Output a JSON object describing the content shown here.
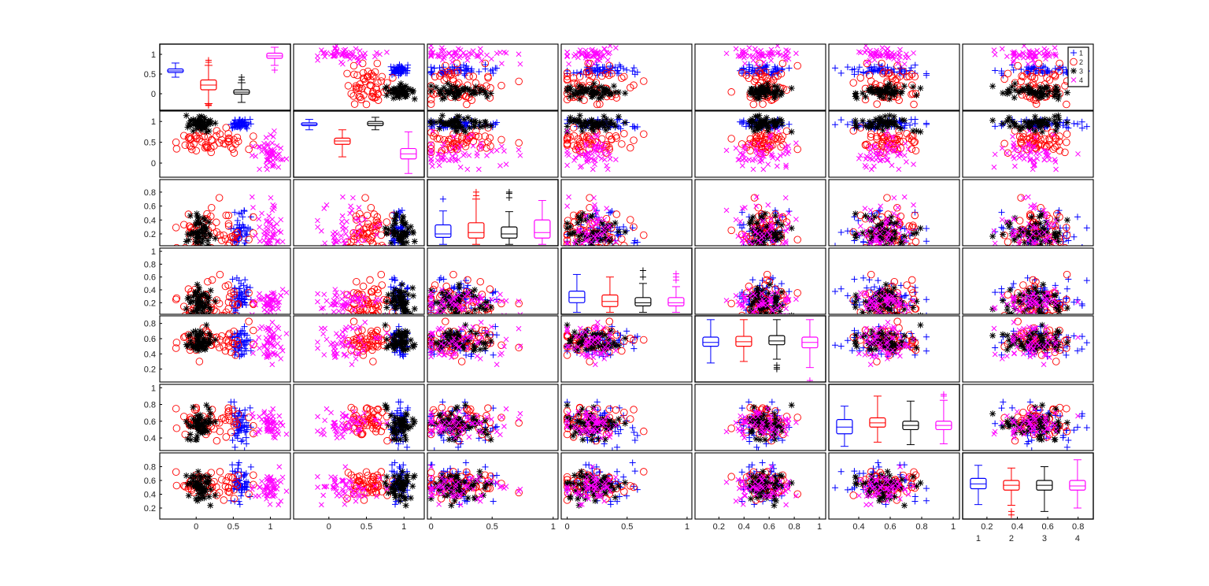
{
  "chart_data": {
    "type": "scatter-matrix",
    "diagonal": "boxplot",
    "grid": false,
    "legend_placement": "top-right",
    "groups": [
      {
        "name": "1",
        "color": "#0000ff",
        "marker": "plus"
      },
      {
        "name": "2",
        "color": "#ff0000",
        "marker": "circle"
      },
      {
        "name": "3",
        "color": "#000000",
        "marker": "asterisk"
      },
      {
        "name": "4",
        "color": "#ff00ff",
        "marker": "cross"
      }
    ],
    "variables": [
      {
        "range": [
          -0.49,
          1.27
        ],
        "yrange": [
          -0.42,
          1.26
        ],
        "xticks": [
          "0",
          "0.5",
          "1"
        ],
        "yticks": [
          "0",
          "0.5",
          "1"
        ],
        "boxplot": [
          {
            "median": 0.58,
            "q1": 0.54,
            "q3": 0.63,
            "whiskers": [
              0.42,
              0.78
            ],
            "outliers": []
          },
          {
            "median": 0.22,
            "q1": 0.1,
            "q3": 0.35,
            "whiskers": [
              -0.25,
              0.72
            ],
            "outliers": [
              0.8,
              0.85,
              -0.28,
              -0.3
            ]
          },
          {
            "median": 0.04,
            "q1": -0.01,
            "q3": 0.1,
            "whiskers": [
              -0.22,
              0.28
            ],
            "outliers": [
              0.35,
              0.42
            ]
          },
          {
            "median": 0.96,
            "q1": 0.9,
            "q3": 1.03,
            "whiskers": [
              0.72,
              1.18
            ],
            "outliers": [
              0.6
            ]
          }
        ]
      },
      {
        "range": [
          -0.47,
          1.27
        ],
        "yrange": [
          -0.34,
          1.25
        ],
        "xticks": [
          "0",
          "0.5",
          "1"
        ],
        "yticks": [
          "0",
          "0.5",
          "1"
        ],
        "boxplot": [
          {
            "median": 0.93,
            "q1": 0.9,
            "q3": 0.97,
            "whiskers": [
              0.8,
              1.05
            ],
            "outliers": []
          },
          {
            "median": 0.53,
            "q1": 0.45,
            "q3": 0.6,
            "whiskers": [
              0.15,
              0.8
            ],
            "outliers": []
          },
          {
            "median": 0.95,
            "q1": 0.9,
            "q3": 1.0,
            "whiskers": [
              0.8,
              1.1
            ],
            "outliers": []
          },
          {
            "median": 0.22,
            "q1": 0.1,
            "q3": 0.35,
            "whiskers": [
              -0.25,
              0.75
            ],
            "outliers": []
          }
        ]
      },
      {
        "range": [
          -0.03,
          1.04
        ],
        "yrange": [
          0.03,
          0.98
        ],
        "xticks": [
          "0",
          "0.5",
          "1"
        ],
        "yticks": [
          "0.2",
          "0.4",
          "0.6",
          "0.8"
        ],
        "boxplot": [
          {
            "median": 0.2,
            "q1": 0.15,
            "q3": 0.33,
            "whiskers": [
              0.05,
              0.53
            ],
            "outliers": [
              0.7
            ]
          },
          {
            "median": 0.22,
            "q1": 0.14,
            "q3": 0.36,
            "whiskers": [
              0.05,
              0.7
            ],
            "outliers": [
              0.75,
              0.8
            ]
          },
          {
            "median": 0.2,
            "q1": 0.14,
            "q3": 0.3,
            "whiskers": [
              0.05,
              0.52
            ],
            "outliers": [
              0.72,
              0.78,
              0.8
            ]
          },
          {
            "median": 0.22,
            "q1": 0.14,
            "q3": 0.4,
            "whiskers": [
              0.05,
              0.68
            ],
            "outliers": []
          }
        ]
      },
      {
        "range": [
          -0.05,
          1.04
        ],
        "yrange": [
          0.02,
          1.05
        ],
        "xticks": [
          "0",
          "0.5",
          "1"
        ],
        "yticks": [
          "0.2",
          "0.4",
          "0.6",
          "0.8",
          "1"
        ],
        "boxplot": [
          {
            "median": 0.28,
            "q1": 0.2,
            "q3": 0.38,
            "whiskers": [
              0.05,
              0.64
            ],
            "outliers": []
          },
          {
            "median": 0.22,
            "q1": 0.14,
            "q3": 0.32,
            "whiskers": [
              0.05,
              0.6
            ],
            "outliers": []
          },
          {
            "median": 0.2,
            "q1": 0.15,
            "q3": 0.28,
            "whiskers": [
              0.05,
              0.5
            ],
            "outliers": [
              0.6,
              0.7
            ]
          },
          {
            "median": 0.2,
            "q1": 0.15,
            "q3": 0.28,
            "whiskers": [
              0.05,
              0.45
            ],
            "outliers": [
              0.55,
              0.6,
              0.65
            ]
          }
        ]
      },
      {
        "range": [
          0.01,
          1.05
        ],
        "yrange": [
          0.03,
          0.9
        ],
        "xticks": [
          "0.2",
          "0.4",
          "0.6",
          "0.8",
          "1"
        ],
        "yticks": [
          "0.2",
          "0.4",
          "0.6",
          "0.8"
        ],
        "boxplot": [
          {
            "median": 0.55,
            "q1": 0.5,
            "q3": 0.62,
            "whiskers": [
              0.28,
              0.85
            ],
            "outliers": []
          },
          {
            "median": 0.56,
            "q1": 0.5,
            "q3": 0.63,
            "whiskers": [
              0.3,
              0.85
            ],
            "outliers": []
          },
          {
            "median": 0.57,
            "q1": 0.52,
            "q3": 0.64,
            "whiskers": [
              0.33,
              0.85
            ],
            "outliers": [
              0.25,
              0.22,
              0.2
            ]
          },
          {
            "median": 0.55,
            "q1": 0.48,
            "q3": 0.62,
            "whiskers": [
              0.22,
              0.85
            ],
            "outliers": [
              0.05
            ]
          }
        ]
      },
      {
        "range": [
          0.21,
          1.04
        ],
        "yrange": [
          0.25,
          1.04
        ],
        "xticks": [
          "0.4",
          "0.6",
          "0.8",
          "1"
        ],
        "yticks": [
          "0.4",
          "0.6",
          "0.8",
          "1"
        ],
        "boxplot": [
          {
            "median": 0.53,
            "q1": 0.45,
            "q3": 0.62,
            "whiskers": [
              0.3,
              0.78
            ],
            "outliers": []
          },
          {
            "median": 0.58,
            "q1": 0.53,
            "q3": 0.64,
            "whiskers": [
              0.35,
              0.9
            ],
            "outliers": []
          },
          {
            "median": 0.55,
            "q1": 0.5,
            "q3": 0.6,
            "whiskers": [
              0.32,
              0.84
            ],
            "outliers": []
          },
          {
            "median": 0.55,
            "q1": 0.5,
            "q3": 0.6,
            "whiskers": [
              0.33,
              0.85
            ],
            "outliers": [
              0.9,
              0.92
            ]
          }
        ]
      },
      {
        "range": [
          0.04,
          0.9
        ],
        "yrange": [
          0.04,
          1.0
        ],
        "xticks": [
          "0.2",
          "0.4",
          "0.6",
          "0.8"
        ],
        "yticks": [
          "0.2",
          "0.4",
          "0.6",
          "0.8"
        ],
        "boxplot": [
          {
            "median": 0.55,
            "q1": 0.48,
            "q3": 0.63,
            "whiskers": [
              0.25,
              0.82
            ],
            "outliers": []
          },
          {
            "median": 0.53,
            "q1": 0.46,
            "q3": 0.6,
            "whiskers": [
              0.24,
              0.78
            ],
            "outliers": [
              0.15,
              0.1
            ]
          },
          {
            "median": 0.53,
            "q1": 0.46,
            "q3": 0.6,
            "whiskers": [
              0.15,
              0.8
            ],
            "outliers": []
          },
          {
            "median": 0.52,
            "q1": 0.46,
            "q3": 0.6,
            "whiskers": [
              0.2,
              0.9
            ],
            "outliers": []
          }
        ]
      }
    ],
    "diagonal_group_labels": [
      "1",
      "2",
      "3",
      "4"
    ]
  }
}
